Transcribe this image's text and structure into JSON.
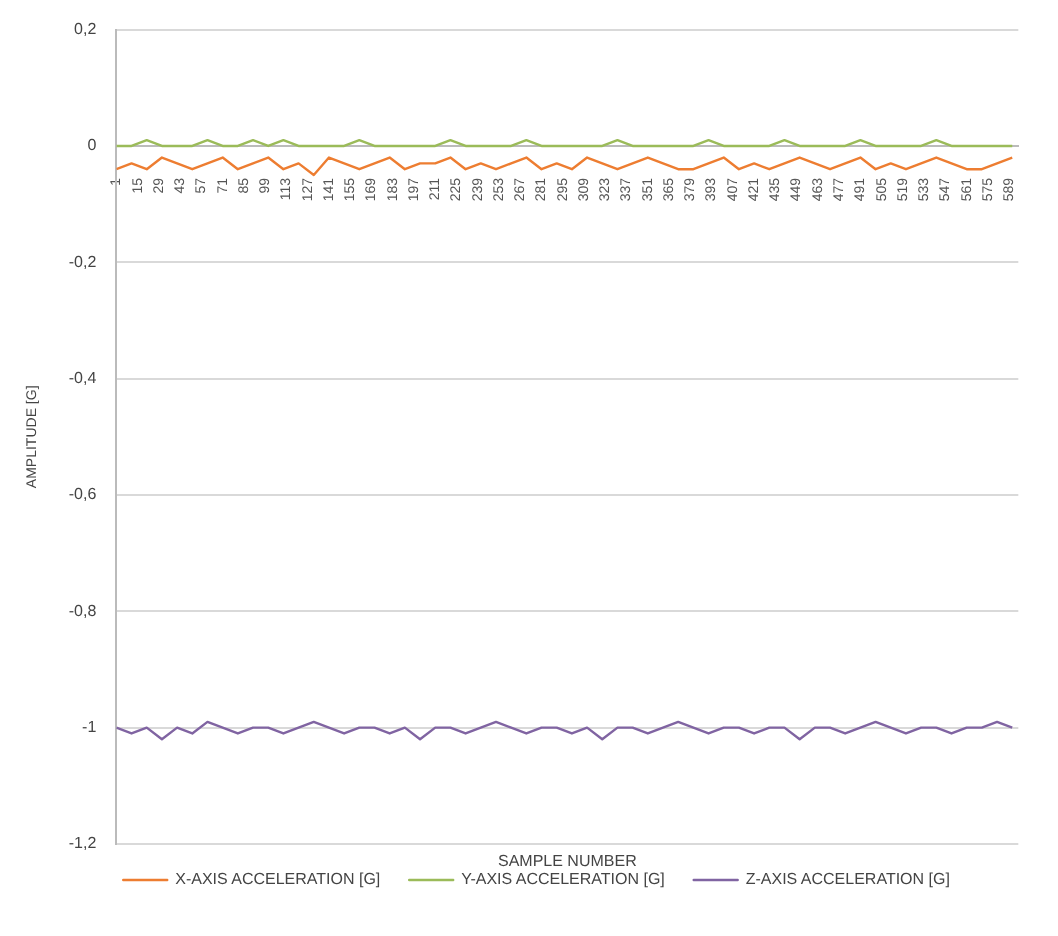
{
  "chart_data": {
    "type": "line",
    "xlabel": "SAMPLE NUMBER",
    "ylabel": "AMPLITUDE [G]",
    "x": [
      1,
      11,
      21,
      31,
      41,
      51,
      61,
      71,
      81,
      91,
      101,
      111,
      121,
      131,
      141,
      151,
      161,
      171,
      181,
      191,
      201,
      211,
      221,
      231,
      241,
      251,
      261,
      271,
      281,
      291,
      301,
      311,
      321,
      331,
      341,
      351,
      361,
      371,
      381,
      391,
      401,
      411,
      421,
      431,
      441,
      451,
      461,
      471,
      481,
      491,
      501,
      511,
      521,
      531,
      541,
      551,
      561,
      571,
      581,
      591
    ],
    "series": [
      {
        "name": "X-AXIS ACCELERATION [G]",
        "color": "#ed7d31",
        "values": [
          -0.04,
          -0.03,
          -0.04,
          -0.02,
          -0.03,
          -0.04,
          -0.03,
          -0.02,
          -0.04,
          -0.03,
          -0.02,
          -0.04,
          -0.03,
          -0.05,
          -0.02,
          -0.03,
          -0.04,
          -0.03,
          -0.02,
          -0.04,
          -0.03,
          -0.03,
          -0.02,
          -0.04,
          -0.03,
          -0.04,
          -0.03,
          -0.02,
          -0.04,
          -0.03,
          -0.04,
          -0.02,
          -0.03,
          -0.04,
          -0.03,
          -0.02,
          -0.03,
          -0.04,
          -0.04,
          -0.03,
          -0.02,
          -0.04,
          -0.03,
          -0.04,
          -0.03,
          -0.02,
          -0.03,
          -0.04,
          -0.03,
          -0.02,
          -0.04,
          -0.03,
          -0.04,
          -0.03,
          -0.02,
          -0.03,
          -0.04,
          -0.04,
          -0.03,
          -0.02
        ]
      },
      {
        "name": "Y-AXIS ACCELERATION [G]",
        "color": "#9bbb59",
        "values": [
          0,
          0,
          0.01,
          0,
          0,
          0,
          0.01,
          0,
          0,
          0.01,
          0,
          0.01,
          0,
          0,
          0,
          0,
          0.01,
          0,
          0,
          0,
          0,
          0,
          0.01,
          0,
          0,
          0,
          0,
          0.01,
          0,
          0,
          0,
          0,
          0,
          0.01,
          0,
          0,
          0,
          0,
          0,
          0.01,
          0,
          0,
          0,
          0,
          0.01,
          0,
          0,
          0,
          0,
          0.01,
          0,
          0,
          0,
          0,
          0.01,
          0,
          0,
          0,
          0,
          0
        ]
      },
      {
        "name": "Z-AXIS ACCELERATION [G]",
        "color": "#8064a2",
        "values": [
          -1,
          -1.01,
          -1,
          -1.02,
          -1,
          -1.01,
          -0.99,
          -1,
          -1.01,
          -1,
          -1,
          -1.01,
          -1,
          -0.99,
          -1,
          -1.01,
          -1,
          -1,
          -1.01,
          -1,
          -1.02,
          -1,
          -1,
          -1.01,
          -1,
          -0.99,
          -1,
          -1.01,
          -1,
          -1,
          -1.01,
          -1,
          -1.02,
          -1,
          -1,
          -1.01,
          -1,
          -0.99,
          -1,
          -1.01,
          -1,
          -1,
          -1.01,
          -1,
          -1,
          -1.02,
          -1,
          -1,
          -1.01,
          -1,
          -0.99,
          -1,
          -1.01,
          -1,
          -1,
          -1.01,
          -1,
          -1,
          -0.99,
          -1
        ]
      }
    ],
    "xlim": [
      1,
      595
    ],
    "xticks": [
      1,
      15,
      29,
      43,
      57,
      71,
      85,
      99,
      113,
      127,
      141,
      155,
      169,
      183,
      197,
      211,
      225,
      239,
      253,
      267,
      281,
      295,
      309,
      323,
      337,
      351,
      365,
      379,
      393,
      407,
      421,
      435,
      449,
      463,
      477,
      491,
      505,
      519,
      533,
      547,
      561,
      575,
      589
    ],
    "ylim": [
      -1.2,
      0.2
    ],
    "yticks": [
      {
        "value": 0.2,
        "label": "0,2"
      },
      0,
      {
        "value": -0.2,
        "label": "-0,2"
      },
      {
        "value": -0.4,
        "label": "-0,4"
      },
      {
        "value": -0.6,
        "label": "-0,6"
      },
      {
        "value": -0.8,
        "label": "-0,8"
      },
      -1,
      {
        "value": -1.2,
        "label": "-1,2"
      }
    ],
    "grid": "y",
    "legend": "bottom",
    "marker": "none",
    "line_style": "solid"
  }
}
